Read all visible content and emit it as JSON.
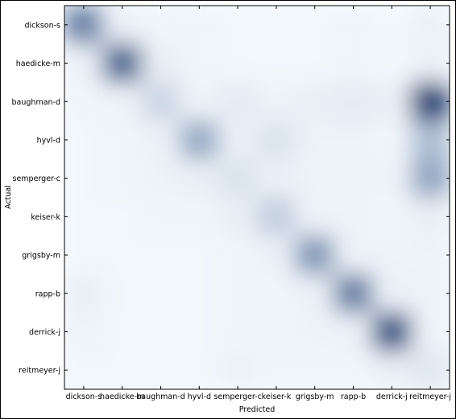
{
  "chart_data": {
    "type": "heatmap",
    "title": "",
    "xlabel": "Predicted",
    "ylabel": "Actual",
    "x_categories": [
      "dickson-s",
      "haedicke-m",
      "baughman-d",
      "hyvl-d",
      "semperger-c",
      "keiser-k",
      "grigsby-m",
      "rapp-b",
      "derrick-j",
      "reitmeyer-j"
    ],
    "y_categories": [
      "dickson-s",
      "haedicke-m",
      "baughman-d",
      "hyvl-d",
      "semperger-c",
      "keiser-k",
      "grigsby-m",
      "rapp-b",
      "derrick-j",
      "reitmeyer-j"
    ],
    "values": [
      [
        0.6,
        0.05,
        0.03,
        0.03,
        0.02,
        0.02,
        0.02,
        0.03,
        0.02,
        0.05
      ],
      [
        0.05,
        0.75,
        0.06,
        0.03,
        0.02,
        0.02,
        0.02,
        0.03,
        0.02,
        0.05
      ],
      [
        0.03,
        0.04,
        0.18,
        0.04,
        0.08,
        0.04,
        0.06,
        0.08,
        0.06,
        0.95
      ],
      [
        0.02,
        0.03,
        0.05,
        0.4,
        0.05,
        0.12,
        0.04,
        0.04,
        0.03,
        0.3
      ],
      [
        0.02,
        0.03,
        0.04,
        0.06,
        0.12,
        0.05,
        0.04,
        0.04,
        0.04,
        0.42
      ],
      [
        0.02,
        0.02,
        0.03,
        0.03,
        0.06,
        0.22,
        0.04,
        0.04,
        0.03,
        0.06
      ],
      [
        0.02,
        0.02,
        0.02,
        0.02,
        0.03,
        0.05,
        0.5,
        0.04,
        0.04,
        0.04
      ],
      [
        0.06,
        0.02,
        0.02,
        0.02,
        0.03,
        0.03,
        0.05,
        0.62,
        0.05,
        0.04
      ],
      [
        0.04,
        0.02,
        0.02,
        0.02,
        0.03,
        0.03,
        0.04,
        0.05,
        0.85,
        0.04
      ],
      [
        0.02,
        0.02,
        0.02,
        0.02,
        0.05,
        0.03,
        0.03,
        0.03,
        0.06,
        0.1
      ]
    ],
    "colormap": [
      "#f7fbff",
      "#08306b"
    ],
    "grid": false,
    "legend": "none"
  }
}
